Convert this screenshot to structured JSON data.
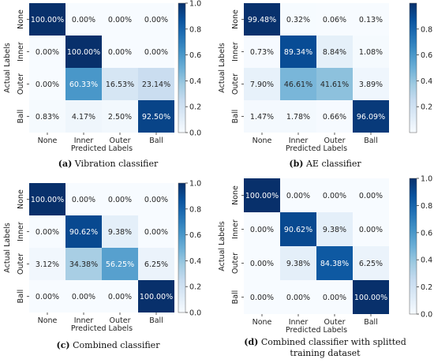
{
  "chart_data": [
    {
      "type": "heatmap",
      "caption_label": "(a)",
      "caption_text": "Vibration classifier",
      "xlabel": "Predicted Labels",
      "ylabel": "Actual Labels",
      "categories": [
        "None",
        "Inner",
        "Outer",
        "Ball"
      ],
      "values": [
        [
          100.0,
          0.0,
          0.0,
          0.0
        ],
        [
          0.0,
          100.0,
          0.0,
          0.0
        ],
        [
          0.0,
          60.33,
          16.53,
          23.14
        ],
        [
          0.83,
          4.17,
          2.5,
          92.5
        ]
      ],
      "cells": [
        [
          "100.00%",
          "0.00%",
          "0.00%",
          "0.00%"
        ],
        [
          "0.00%",
          "100.00%",
          "0.00%",
          "0.00%"
        ],
        [
          "0.00%",
          "60.33%",
          "16.53%",
          "23.14%"
        ],
        [
          "0.83%",
          "4.17%",
          "2.50%",
          "92.50%"
        ]
      ],
      "colorbar_range": [
        0,
        1
      ],
      "colorbar_ticks": [
        "0.0",
        "0.2",
        "0.4",
        "0.6",
        "0.8",
        "1.0"
      ]
    },
    {
      "type": "heatmap",
      "caption_label": "(b)",
      "caption_text": "AE classifier",
      "xlabel": "Predicted Labels",
      "ylabel": "Actual Labels",
      "categories": [
        "None",
        "Inner",
        "Outer",
        "Ball"
      ],
      "values": [
        [
          99.48,
          0.32,
          0.06,
          0.13
        ],
        [
          0.73,
          89.34,
          8.84,
          1.08
        ],
        [
          7.9,
          46.61,
          41.61,
          3.89
        ],
        [
          1.47,
          1.78,
          0.66,
          96.09
        ]
      ],
      "cells": [
        [
          "99.48%",
          "0.32%",
          "0.06%",
          "0.13%"
        ],
        [
          "0.73%",
          "89.34%",
          "8.84%",
          "1.08%"
        ],
        [
          "7.90%",
          "46.61%",
          "41.61%",
          "3.89%"
        ],
        [
          "1.47%",
          "1.78%",
          "0.66%",
          "96.09%"
        ]
      ],
      "colorbar_range": [
        0,
        1
      ],
      "colorbar_ticks": [
        "0.2",
        "0.4",
        "0.6",
        "0.8"
      ]
    },
    {
      "type": "heatmap",
      "caption_label": "(c)",
      "caption_text": "Combined classifier",
      "xlabel": "Predicted Labels",
      "ylabel": "Actual Labels",
      "categories": [
        "None",
        "Inner",
        "Outer",
        "Ball"
      ],
      "values": [
        [
          100.0,
          0.0,
          0.0,
          0.0
        ],
        [
          0.0,
          90.62,
          9.38,
          0.0
        ],
        [
          3.12,
          34.38,
          56.25,
          6.25
        ],
        [
          0.0,
          0.0,
          0.0,
          100.0
        ]
      ],
      "cells": [
        [
          "100.00%",
          "0.00%",
          "0.00%",
          "0.00%"
        ],
        [
          "0.00%",
          "90.62%",
          "9.38%",
          "0.00%"
        ],
        [
          "3.12%",
          "34.38%",
          "56.25%",
          "6.25%"
        ],
        [
          "0.00%",
          "0.00%",
          "0.00%",
          "100.00%"
        ]
      ],
      "colorbar_range": [
        0,
        1
      ],
      "colorbar_ticks": [
        "0.0",
        "0.2",
        "0.4",
        "0.6",
        "0.8",
        "1.0"
      ]
    },
    {
      "type": "heatmap",
      "caption_label": "(d)",
      "caption_text": "Combined classifier with splitted training dataset",
      "xlabel": "Predicted Labels",
      "ylabel": "Actual Labels",
      "categories": [
        "None",
        "Inner",
        "Outer",
        "Ball"
      ],
      "values": [
        [
          100.0,
          0.0,
          0.0,
          0.0
        ],
        [
          0.0,
          90.62,
          9.38,
          0.0
        ],
        [
          0.0,
          9.38,
          84.38,
          6.25
        ],
        [
          0.0,
          0.0,
          0.0,
          100.0
        ]
      ],
      "cells": [
        [
          "100.00%",
          "0.00%",
          "0.00%",
          "0.00%"
        ],
        [
          "0.00%",
          "90.62%",
          "9.38%",
          "0.00%"
        ],
        [
          "0.00%",
          "9.38%",
          "84.38%",
          "6.25%"
        ],
        [
          "0.00%",
          "0.00%",
          "0.00%",
          "100.00%"
        ]
      ],
      "colorbar_range": [
        0,
        1
      ],
      "colorbar_ticks": [
        "0.0",
        "0.2",
        "0.4",
        "0.6",
        "0.8",
        "1.0"
      ]
    }
  ]
}
